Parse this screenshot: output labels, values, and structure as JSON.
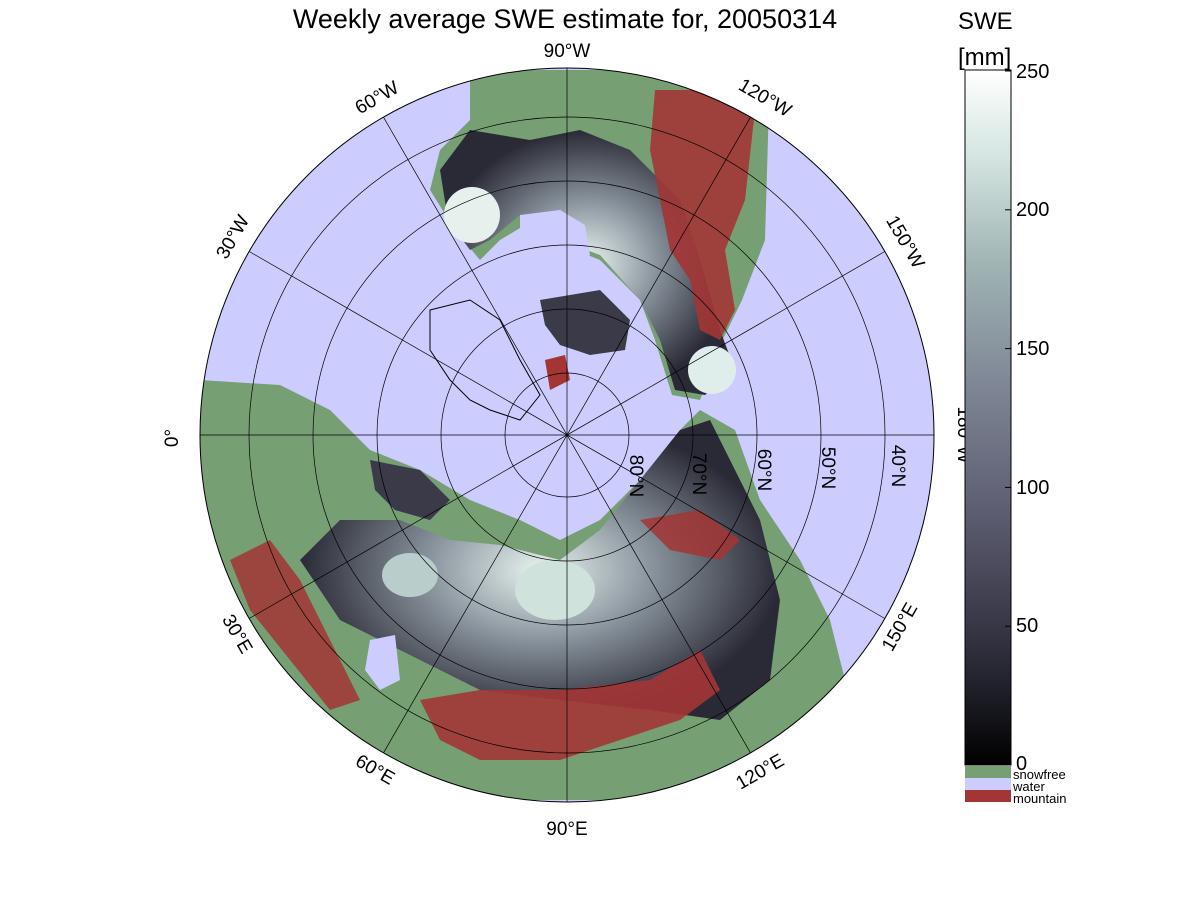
{
  "title": "Weekly average SWE estimate for, 20050314",
  "colorbar": {
    "title_line1": "SWE",
    "title_line2": "[mm]",
    "ticks": [
      "250",
      "200",
      "150",
      "100",
      "50",
      "0"
    ],
    "range": [
      0,
      250
    ],
    "gradient": [
      "#000000",
      "#2b2b38",
      "#5a5a6e",
      "#7f8796",
      "#9fb4b4",
      "#d6e6e2",
      "#ffffff"
    ]
  },
  "legend": [
    {
      "label": "snowfree",
      "color": "#76a074"
    },
    {
      "label": "water",
      "color": "#ccccff"
    },
    {
      "label": "mountain",
      "color": "#a33535"
    }
  ],
  "longitude_labels": {
    "lon_90W": "90°W",
    "lon_120W": "120°W",
    "lon_150W": "150°W",
    "lon_180W": "180°W",
    "lon_60W": "60°W",
    "lon_30W": "30°W",
    "lon_0": "0°",
    "lon_30E": "30°E",
    "lon_60E": "60°E",
    "lon_90E": "90°E",
    "lon_120E": "120°E",
    "lon_150E": "150°E"
  },
  "latitude_labels": {
    "lat_80N": "80°N",
    "lat_70N": "70°N",
    "lat_60N": "60°N",
    "lat_50N": "50°N",
    "lat_40N": "40°N"
  },
  "colors": {
    "water": "#ccccff",
    "snowfree": "#76a074",
    "mountain": "#a33535",
    "swe_low": "#1a1a22",
    "swe_mid": "#5a5a6e",
    "swe_high": "#dfeeea"
  }
}
